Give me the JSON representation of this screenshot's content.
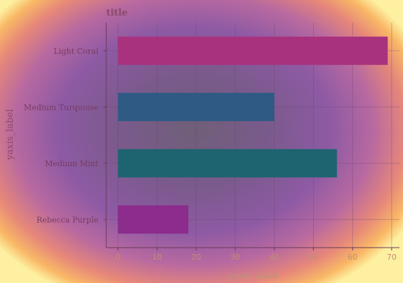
{
  "chart_data": {
    "type": "bar",
    "orientation": "horizontal",
    "title": "title",
    "xlabel": "xaxis_label",
    "ylabel": "yaxis_label",
    "categories": [
      "Light Coral",
      "Medium Turquoise",
      "Medium Mint",
      "Rebecca Purple"
    ],
    "values": [
      69,
      40,
      56,
      18
    ],
    "colors": [
      "#a8327e",
      "#2e5a84",
      "#1d6470",
      "#8c2c8c"
    ],
    "xlim": [
      -3,
      72
    ],
    "xticks": [
      0,
      10,
      20,
      30,
      40,
      50,
      60,
      70
    ],
    "grid": true,
    "legend": "none"
  }
}
